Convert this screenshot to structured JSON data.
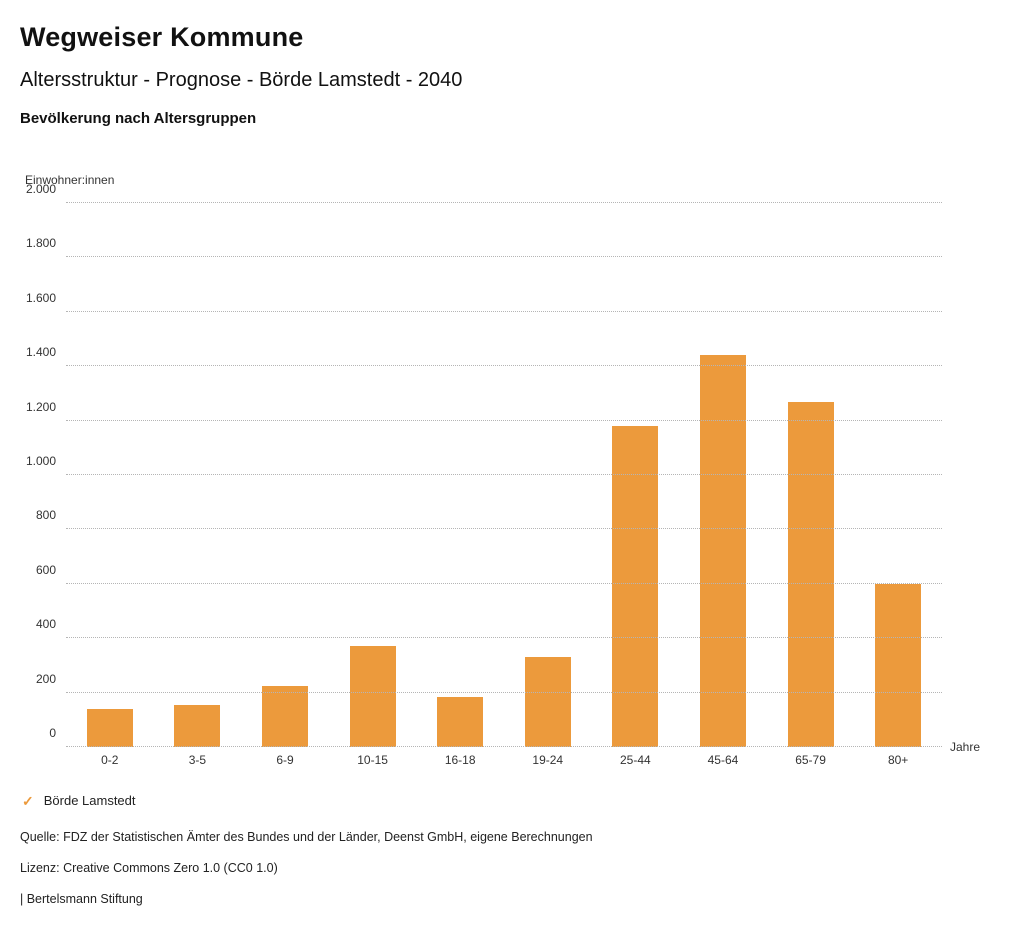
{
  "header": {
    "title": "Wegweiser Kommune",
    "subtitle": "Altersstruktur - Prognose - Börde Lamstedt - 2040",
    "chart_heading": "Bevölkerung nach Altersgruppen"
  },
  "chart_data": {
    "type": "bar",
    "title": "Bevölkerung nach Altersgruppen",
    "categories": [
      "0-2",
      "3-5",
      "6-9",
      "10-15",
      "16-18",
      "19-24",
      "25-44",
      "45-64",
      "65-79",
      "80+"
    ],
    "values": [
      140,
      155,
      225,
      370,
      185,
      330,
      1180,
      1440,
      1270,
      600
    ],
    "xlabel": "Jahre",
    "ylabel": "Einwohner:innen",
    "ylim": [
      0,
      2000
    ],
    "ytick_step": 200,
    "ytick_labels": [
      "0",
      "200",
      "400",
      "600",
      "800",
      "1.000",
      "1.200",
      "1.400",
      "1.600",
      "1.800",
      "2.000"
    ],
    "grid": true,
    "bar_color": "#EC9A3C",
    "legend_position": "bottom-left",
    "series_name": "Börde Lamstedt"
  },
  "legend": {
    "check_icon": "✓",
    "label": "Börde Lamstedt",
    "color": "#EC9A3C"
  },
  "footer": {
    "source": "Quelle: FDZ der Statistischen Ämter des Bundes und der Länder, Deenst GmbH, eigene Berechnungen",
    "license": "Lizenz: Creative Commons Zero 1.0 (CC0 1.0)",
    "attribution": "| Bertelsmann Stiftung"
  }
}
